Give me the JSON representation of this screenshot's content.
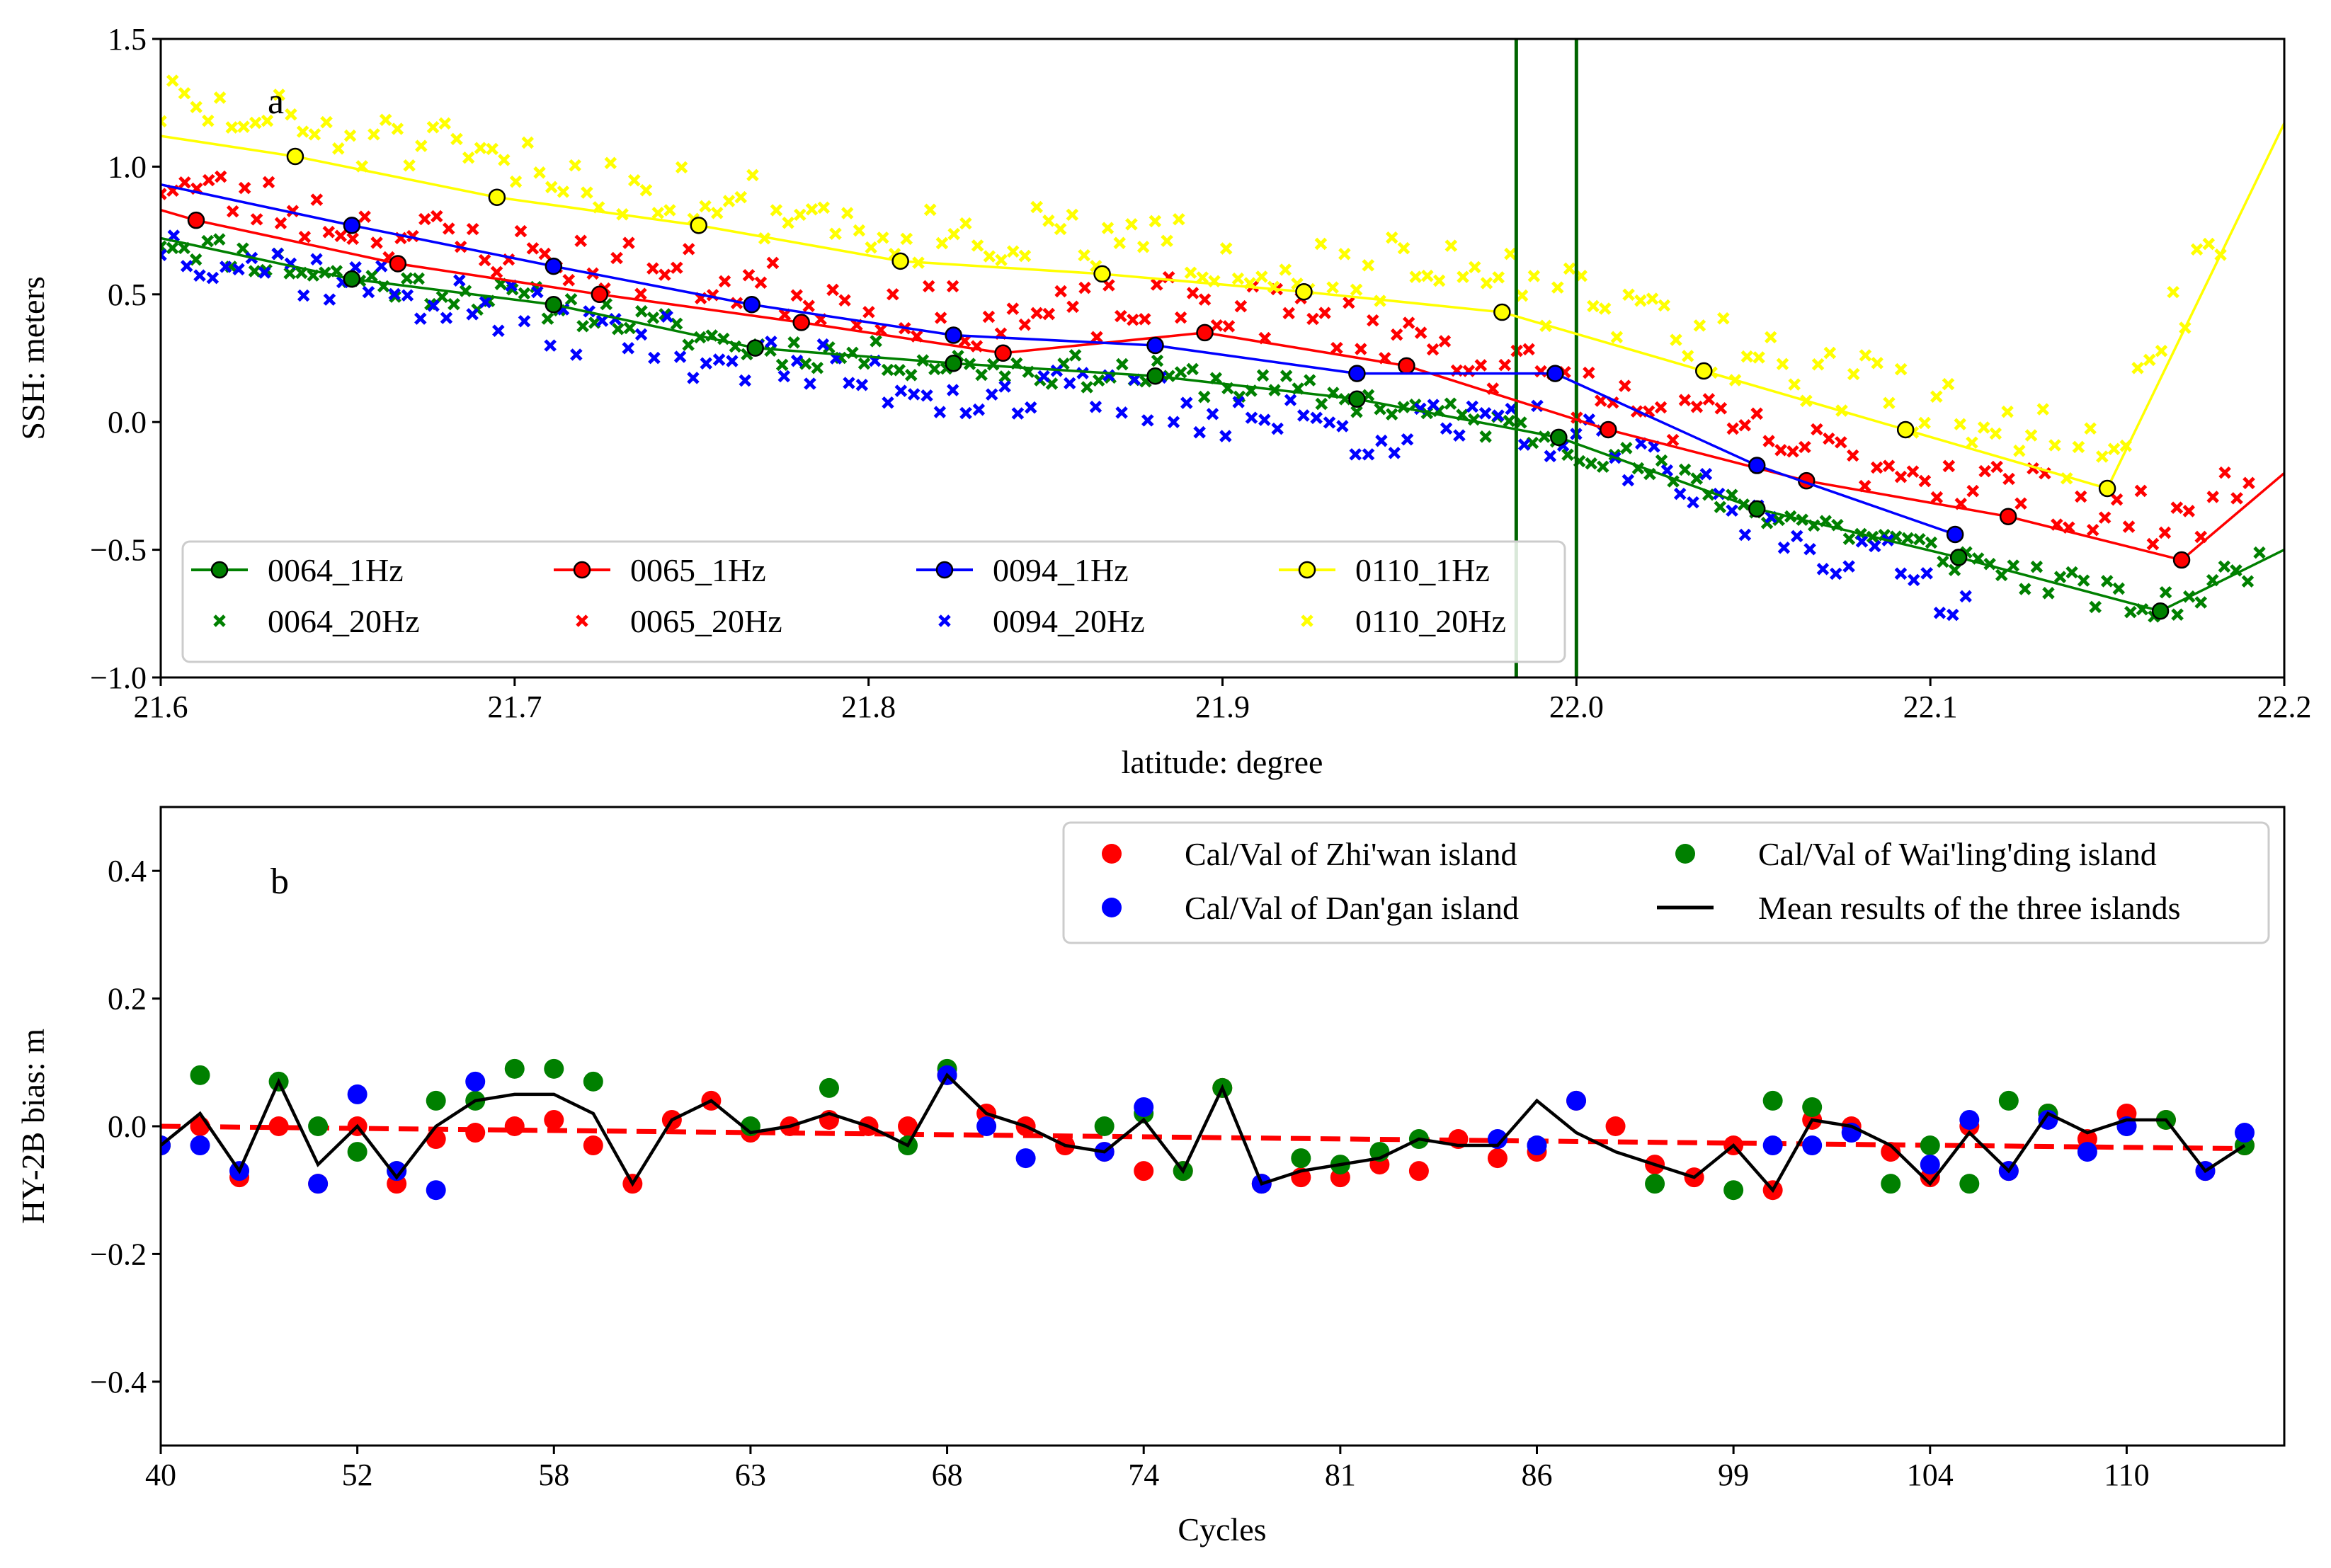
{
  "chart_data": [
    {
      "type": "scatter",
      "panel_label": "a",
      "xlabel": "latitude: degree",
      "ylabel": "SSH: meters",
      "xlim": [
        21.6,
        22.2
      ],
      "ylim": [
        -1.0,
        1.5
      ],
      "xticks": [
        "21.6",
        "21.7",
        "21.8",
        "21.9",
        "22.0",
        "22.1",
        "22.2"
      ],
      "yticks": [
        "1.5",
        "1.0",
        "0.5",
        "0.0",
        "−0.5",
        "−1.0"
      ],
      "vlines": [
        21.983,
        22.0
      ],
      "vline_color": "#006400",
      "legend_position": "lower-left",
      "series": [
        {
          "name": "0064_1Hz",
          "kind": "line-marker",
          "color": "#008000",
          "x": [
            21.6,
            21.654,
            21.711,
            21.768,
            21.824,
            21.881,
            21.938,
            21.995,
            22.051,
            22.108,
            22.165,
            22.2
          ],
          "y": [
            0.72,
            0.56,
            0.46,
            0.29,
            0.23,
            0.18,
            0.09,
            -0.06,
            -0.34,
            -0.53,
            -0.74,
            -0.5
          ]
        },
        {
          "name": "0065_1Hz",
          "kind": "line-marker",
          "color": "#ff0000",
          "x": [
            21.6,
            21.61,
            21.667,
            21.724,
            21.781,
            21.838,
            21.895,
            21.952,
            22.009,
            22.065,
            22.122,
            22.171,
            22.2
          ],
          "y": [
            0.83,
            0.79,
            0.62,
            0.5,
            0.39,
            0.27,
            0.35,
            0.22,
            -0.03,
            -0.23,
            -0.37,
            -0.54,
            -0.2
          ]
        },
        {
          "name": "0094_1Hz",
          "kind": "line-marker",
          "color": "#0000ff",
          "x": [
            21.6,
            21.654,
            21.711,
            21.767,
            21.824,
            21.881,
            21.938,
            21.994,
            22.051,
            22.107
          ],
          "y": [
            0.93,
            0.77,
            0.61,
            0.46,
            0.34,
            0.3,
            0.19,
            0.19,
            -0.17,
            -0.44
          ]
        },
        {
          "name": "0110_1Hz",
          "kind": "line-marker",
          "color": "#ffff00",
          "x": [
            21.6,
            21.638,
            21.695,
            21.752,
            21.809,
            21.866,
            21.923,
            21.979,
            22.036,
            22.093,
            22.15,
            22.2
          ],
          "y": [
            1.12,
            1.04,
            0.88,
            0.77,
            0.63,
            0.58,
            0.51,
            0.43,
            0.2,
            -0.03,
            -0.26,
            1.17
          ]
        },
        {
          "name": "0064_20Hz",
          "kind": "cross",
          "color": "#008000",
          "generate": {
            "from": 21.6,
            "to": 22.193,
            "count": 180,
            "line": "0064_1Hz",
            "noise": 0.04,
            "seed": 11
          }
        },
        {
          "name": "0065_20Hz",
          "kind": "cross",
          "color": "#ff0000",
          "generate": {
            "from": 21.6,
            "to": 22.19,
            "count": 175,
            "line": "0065_1Hz",
            "noise": 0.07,
            "seed": 23,
            "offset": 0.12
          }
        },
        {
          "name": "0094_20Hz",
          "kind": "cross",
          "color": "#0000ff",
          "generate": {
            "from": 21.6,
            "to": 22.11,
            "count": 140,
            "line": "0094_1Hz",
            "noise": 0.07,
            "seed": 37,
            "offset": -0.22
          }
        },
        {
          "name": "0110_20Hz",
          "kind": "cross",
          "color": "#ffff00",
          "generate": {
            "from": 21.6,
            "to": 22.182,
            "count": 175,
            "line": "0110_1Hz",
            "noise": 0.08,
            "seed": 51,
            "offset": 0.12
          }
        }
      ]
    },
    {
      "type": "scatter",
      "panel_label": "b",
      "xlabel": "Cycles",
      "ylabel": "HY-2B bias: m",
      "ylim": [
        -0.5,
        0.5
      ],
      "yticks": [
        "0.4",
        "0.2",
        "0.0",
        "−0.2",
        "−0.4"
      ],
      "xlim_index": [
        0,
        53
      ],
      "xticks": [
        {
          "i": 0,
          "label": "40"
        },
        {
          "i": 5,
          "label": "52"
        },
        {
          "i": 10,
          "label": "58"
        },
        {
          "i": 15,
          "label": "63"
        },
        {
          "i": 20,
          "label": "68"
        },
        {
          "i": 25,
          "label": "74"
        },
        {
          "i": 30,
          "label": "81"
        },
        {
          "i": 35,
          "label": "86"
        },
        {
          "i": 40,
          "label": "99"
        },
        {
          "i": 45,
          "label": "104"
        },
        {
          "i": 50,
          "label": "110"
        }
      ],
      "legend_position": "upper-right",
      "series": [
        {
          "name": "Cal/Val of Zhi'wan island",
          "kind": "dot",
          "color": "#ff0000",
          "x": [
            0,
            1,
            2,
            3,
            4,
            5,
            6,
            7,
            8,
            9,
            10,
            11,
            12,
            13,
            14,
            15,
            16,
            17,
            18,
            19,
            20,
            21,
            22,
            23,
            24,
            25,
            26,
            27,
            28,
            29,
            30,
            31,
            32,
            33,
            34,
            35,
            36,
            37,
            38,
            39,
            40,
            41,
            42,
            43,
            44,
            45,
            46,
            47,
            48,
            49,
            50,
            51,
            52,
            53
          ],
          "y": [
            -0.03,
            0.0,
            -0.08,
            0.0,
            -0.09,
            0.0,
            -0.09,
            -0.02,
            -0.01,
            0.0,
            0.01,
            -0.03,
            -0.09,
            0.01,
            0.04,
            -0.01,
            0.0,
            0.01,
            0.0,
            0.0,
            0.08,
            0.02,
            0.0,
            -0.03,
            -0.04,
            -0.07,
            -0.07,
            0.06,
            -0.09,
            -0.08,
            -0.08,
            -0.06,
            -0.07,
            -0.02,
            -0.05,
            -0.04,
            0.04,
            0.0,
            -0.06,
            -0.08,
            -0.03,
            -0.1,
            0.01,
            0.0,
            -0.04,
            -0.08,
            0.0,
            -0.07,
            0.02,
            -0.02,
            0.02,
            0.01,
            -0.07,
            -0.03
          ]
        },
        {
          "name": "Cal/Val of Wai'ling'ding island",
          "kind": "dot",
          "color": "#008000",
          "x": [
            0,
            1,
            3,
            4,
            5,
            6,
            7,
            8,
            9,
            10,
            11,
            15,
            17,
            19,
            20,
            24,
            25,
            26,
            27,
            29,
            30,
            31,
            32,
            35,
            38,
            40,
            41,
            42,
            44,
            45,
            46,
            47,
            48,
            50,
            51,
            53
          ],
          "y": [
            -0.03,
            0.08,
            0.07,
            0.0,
            -0.04,
            -0.07,
            0.04,
            0.04,
            0.09,
            0.09,
            0.07,
            0.0,
            0.06,
            -0.03,
            0.09,
            0.0,
            0.02,
            -0.07,
            0.06,
            -0.05,
            -0.06,
            -0.04,
            -0.02,
            -0.03,
            -0.09,
            -0.1,
            0.04,
            0.03,
            -0.09,
            -0.03,
            -0.09,
            0.04,
            0.02,
            0.0,
            0.01,
            -0.03
          ]
        },
        {
          "name": "Cal/Val of Dan'gan island",
          "kind": "dot",
          "color": "#0000ff",
          "x": [
            0,
            1,
            2,
            4,
            5,
            6,
            7,
            8,
            20,
            21,
            22,
            24,
            25,
            28,
            34,
            35,
            36,
            41,
            42,
            43,
            45,
            46,
            47,
            48,
            49,
            50,
            52,
            53
          ],
          "y": [
            -0.03,
            -0.03,
            -0.07,
            -0.09,
            0.05,
            -0.07,
            -0.1,
            0.07,
            0.08,
            0.0,
            -0.05,
            -0.04,
            0.03,
            -0.09,
            -0.02,
            -0.03,
            0.04,
            -0.03,
            -0.03,
            -0.01,
            -0.06,
            0.01,
            -0.07,
            0.01,
            -0.04,
            0.0,
            -0.07,
            -0.01
          ]
        },
        {
          "name": "Mean results of the three islands",
          "kind": "line",
          "color": "#000000",
          "x": [
            0,
            1,
            2,
            3,
            4,
            5,
            6,
            7,
            8,
            9,
            10,
            11,
            12,
            13,
            14,
            15,
            16,
            17,
            18,
            19,
            20,
            21,
            22,
            23,
            24,
            25,
            26,
            27,
            28,
            29,
            30,
            31,
            32,
            33,
            34,
            35,
            36,
            37,
            38,
            39,
            40,
            41,
            42,
            43,
            44,
            45,
            46,
            47,
            48,
            49,
            50,
            51,
            52,
            53
          ],
          "y": [
            -0.03,
            0.02,
            -0.07,
            0.07,
            -0.06,
            0.0,
            -0.08,
            0.0,
            0.04,
            0.05,
            0.05,
            0.02,
            -0.09,
            0.01,
            0.04,
            -0.01,
            0.0,
            0.02,
            0.0,
            -0.03,
            0.08,
            0.02,
            0.0,
            -0.03,
            -0.04,
            0.01,
            -0.07,
            0.06,
            -0.09,
            -0.07,
            -0.06,
            -0.05,
            -0.02,
            -0.03,
            -0.03,
            0.04,
            -0.01,
            -0.04,
            -0.06,
            -0.08,
            -0.03,
            -0.1,
            0.01,
            0.0,
            -0.03,
            -0.09,
            -0.01,
            -0.07,
            0.02,
            -0.01,
            0.01,
            0.01,
            -0.07,
            -0.03
          ]
        },
        {
          "name": "trend",
          "kind": "dashed",
          "color": "#ff0000",
          "x": [
            0,
            53
          ],
          "y": [
            0.0,
            -0.035
          ]
        }
      ]
    }
  ]
}
